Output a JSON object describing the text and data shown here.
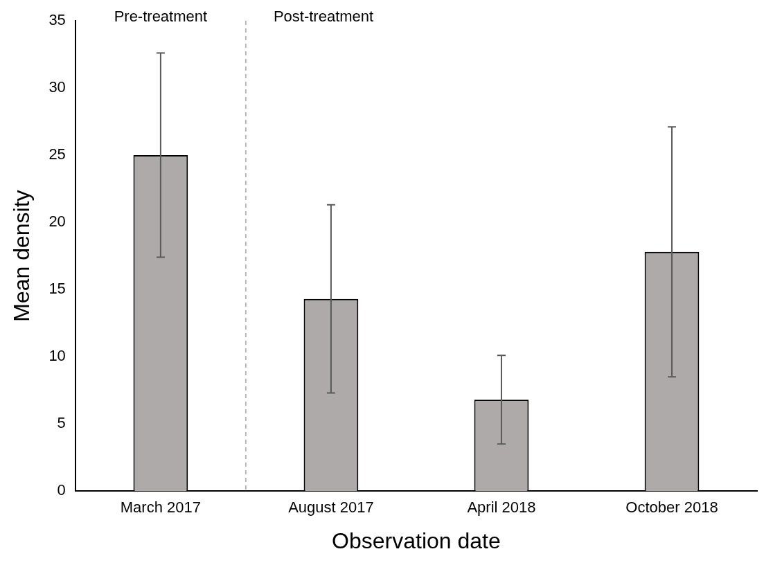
{
  "chart_data": {
    "type": "bar",
    "xlabel": "Observation date",
    "ylabel": "Mean density",
    "categories": [
      "March 2017",
      "August 2017",
      "April 2018",
      "October 2018"
    ],
    "values": [
      25,
      14.3,
      6.8,
      17.8
    ],
    "errors": [
      7.6,
      7.0,
      3.3,
      9.3
    ],
    "color": "#aeaaaa",
    "ylim": [
      0,
      35
    ],
    "yticks": [
      0,
      5,
      10,
      15,
      20,
      25,
      30,
      35
    ],
    "grid": false,
    "annotations": [
      "Pre-treatment",
      "Post-treatment"
    ]
  }
}
